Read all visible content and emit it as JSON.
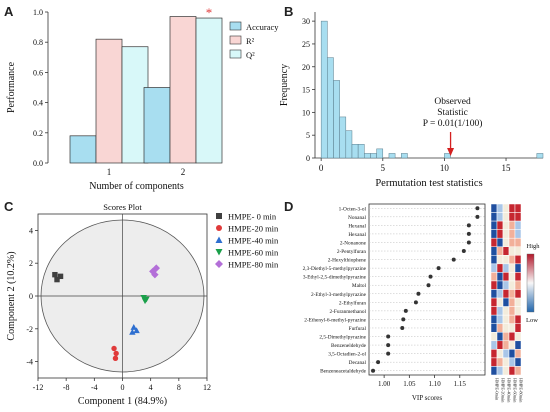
{
  "panels": {
    "a": "A",
    "b": "B",
    "c": "C",
    "d": "D"
  },
  "chart_data": [
    {
      "type": "bar",
      "panel": "A",
      "xlabel": "Number of components",
      "ylabel": "Performance",
      "ylim": [
        0,
        1.0
      ],
      "y_ticks": [
        "0.0",
        "0.2",
        "0.4",
        "0.6",
        "0.8",
        "1.0"
      ],
      "categories": [
        "1",
        "2"
      ],
      "series": [
        {
          "name": "Accuracy",
          "color": "#a8def0",
          "values": [
            0.18,
            0.5
          ]
        },
        {
          "name": "R²",
          "color": "#f9d6d4",
          "values": [
            0.82,
            0.97
          ]
        },
        {
          "name": "Q²",
          "color": "#d8f8f9",
          "values": [
            0.77,
            0.96
          ]
        }
      ],
      "annotation": "*",
      "legend_position": "right"
    },
    {
      "type": "bar",
      "panel": "B",
      "subtype": "histogram",
      "xlabel": "Permutation test statistics",
      "ylabel": "Frequency",
      "xlim": [
        -0.5,
        18
      ],
      "ylim": [
        0,
        32
      ],
      "x_ticks": [
        "0",
        "5",
        "10",
        "15"
      ],
      "y_ticks": [
        "0",
        "5",
        "10",
        "15",
        "20",
        "25",
        "30"
      ],
      "bin_width": 0.5,
      "bins": [
        {
          "x0": 0.0,
          "count": 30
        },
        {
          "x0": 0.5,
          "count": 22
        },
        {
          "x0": 1.0,
          "count": 17
        },
        {
          "x0": 1.5,
          "count": 9
        },
        {
          "x0": 2.0,
          "count": 6
        },
        {
          "x0": 2.5,
          "count": 3
        },
        {
          "x0": 3.0,
          "count": 3
        },
        {
          "x0": 3.5,
          "count": 1
        },
        {
          "x0": 4.0,
          "count": 1
        },
        {
          "x0": 4.5,
          "count": 2
        },
        {
          "x0": 5.5,
          "count": 1
        },
        {
          "x0": 6.5,
          "count": 1
        },
        {
          "x0": 10.0,
          "count": 1
        },
        {
          "x0": 17.5,
          "count": 1
        }
      ],
      "observed_value": 10.5,
      "annotation_lines": [
        "Observed",
        "Statistic",
        "P = 0.01(1/100)"
      ],
      "bar_color": "#a8def0"
    },
    {
      "type": "scatter",
      "panel": "C",
      "title": "Scores Plot",
      "xlabel": "Component 1 (84.9%)",
      "ylabel": "Component 2 (10.2%)",
      "xlim": [
        -12,
        12
      ],
      "ylim": [
        -5,
        5
      ],
      "x_ticks": [
        "-12",
        "-8",
        "-4",
        "0",
        "4",
        "8",
        "12"
      ],
      "y_ticks": [
        "-4",
        "-2",
        "0",
        "2",
        "4"
      ],
      "series": [
        {
          "name": "HMPE- 0  min",
          "color": "#404040",
          "marker": "square",
          "points": [
            [
              -9.6,
              1.3
            ],
            [
              -9.3,
              1.0
            ],
            [
              -8.8,
              1.2
            ]
          ]
        },
        {
          "name": "HMPE-20 min",
          "color": "#e03a3a",
          "marker": "circle",
          "points": [
            [
              -1.2,
              -3.2
            ],
            [
              -0.9,
              -3.5
            ],
            [
              -1.0,
              -3.8
            ]
          ]
        },
        {
          "name": "HMPE-40 min",
          "color": "#2e6fd0",
          "marker": "triangle-up",
          "points": [
            [
              1.6,
              -1.9
            ],
            [
              2.0,
              -2.1
            ],
            [
              1.4,
              -2.2
            ]
          ]
        },
        {
          "name": "HMPE-60 min",
          "color": "#1aa04a",
          "marker": "triangle-down",
          "points": [
            [
              3.0,
              -0.1
            ],
            [
              3.4,
              -0.2
            ],
            [
              3.2,
              -0.3
            ]
          ]
        },
        {
          "name": "HMPE-80 min",
          "color": "#b36fd8",
          "marker": "diamond",
          "points": [
            [
              4.3,
              1.5
            ],
            [
              4.8,
              1.7
            ],
            [
              4.6,
              1.3
            ]
          ]
        }
      ]
    },
    {
      "type": "scatter",
      "panel": "D",
      "subtype": "dotplot",
      "xlabel": "VIP scores",
      "xlim": [
        0.97,
        1.2
      ],
      "x_ticks": [
        "1.00",
        "1.05",
        "1.10",
        "1.15"
      ],
      "categories": [
        "1-Octen-3-ol",
        "Nonanal",
        "Hexanal",
        "Hexanal",
        "2-Nonanone",
        "2-Pentylfuran",
        "2-Hexylthiophene",
        "2,3-Diethyl-5-methylpyrazine",
        "3-Ethyl-2,5-dimethylpyrazine",
        "Maltol",
        "2-Ethyl-3-methylpyrazine",
        "2-Ethylfuran",
        "2-Furanmethanol",
        "2-Ethenyl-6-methyl-pyrazine",
        "Furfural",
        "2,5-Dimethylpyrazine",
        "Benzeneldehyde",
        "3,5-Octadien-2-ol",
        "Decanal",
        "Benzeneacetaldehyde"
      ],
      "values": [
        1.185,
        1.185,
        1.168,
        1.168,
        1.168,
        1.158,
        1.138,
        1.108,
        1.092,
        1.088,
        1.068,
        1.063,
        1.043,
        1.038,
        1.036,
        1.008,
        1.008,
        1.008,
        0.988,
        0.978
      ],
      "heatmap_columns": [
        "HMPE-0min",
        "HMPE-20min",
        "HMPE-40min",
        "HMPE-60min",
        "HMPE-80min"
      ],
      "heatmap_levels": [
        [
          -2,
          -1,
          0,
          2,
          2
        ],
        [
          -2,
          -1,
          0,
          2,
          2
        ],
        [
          -2,
          2,
          0,
          1,
          -1
        ],
        [
          -2,
          2,
          0,
          1,
          -1
        ],
        [
          2,
          -2,
          0,
          1,
          1
        ],
        [
          -2,
          1,
          2,
          0,
          0
        ],
        [
          -2,
          0,
          0,
          1,
          2
        ],
        [
          -1,
          2,
          -1,
          0,
          -2
        ],
        [
          1,
          -2,
          2,
          0,
          2
        ],
        [
          2,
          -2,
          -1,
          0,
          1
        ],
        [
          -2,
          -1,
          2,
          1,
          2
        ],
        [
          2,
          0,
          -2,
          1,
          0
        ],
        [
          2,
          -1,
          0,
          1,
          0
        ],
        [
          -2,
          -1,
          0,
          1,
          2
        ],
        [
          -2,
          1,
          0,
          0,
          2
        ],
        [
          0,
          -2,
          1,
          2,
          0
        ],
        [
          -1,
          2,
          1,
          0,
          -2
        ],
        [
          2,
          0,
          -1,
          -2,
          1
        ],
        [
          2,
          1,
          0,
          -1,
          -2
        ],
        [
          -2,
          -1,
          0,
          2,
          1
        ]
      ],
      "heatmap_colors": {
        "-2": "#1f4fa0",
        "-1": "#a9c6e8",
        "0": "#f3ecdc",
        "1": "#f2b09a",
        "2": "#c62630"
      },
      "colorbar_labels": {
        "high": "High",
        "low": "Low"
      },
      "colorbar_colors": [
        "#b2182b",
        "#f7f7f7",
        "#2166ac"
      ]
    }
  ]
}
